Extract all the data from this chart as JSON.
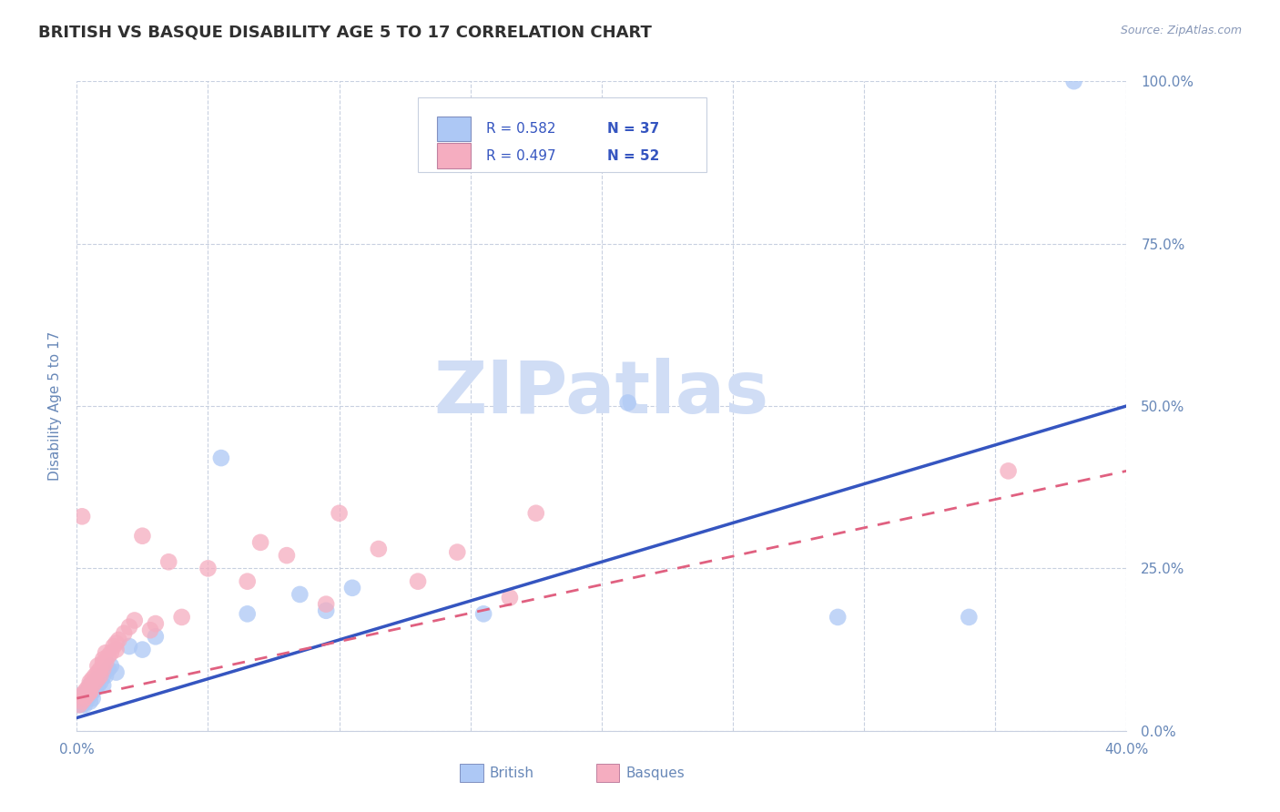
{
  "title": "BRITISH VS BASQUE DISABILITY AGE 5 TO 17 CORRELATION CHART",
  "source": "Source: ZipAtlas.com",
  "ylabel": "Disability Age 5 to 17",
  "xlim": [
    0.0,
    0.4
  ],
  "ylim": [
    0.0,
    1.0
  ],
  "xticks": [
    0.0,
    0.05,
    0.1,
    0.15,
    0.2,
    0.25,
    0.3,
    0.35,
    0.4
  ],
  "yticks": [
    0.0,
    0.25,
    0.5,
    0.75,
    1.0
  ],
  "ytick_labels": [
    "0.0%",
    "25.0%",
    "50.0%",
    "75.0%",
    "100.0%"
  ],
  "british_r": 0.582,
  "british_n": 37,
  "basque_r": 0.497,
  "basque_n": 52,
  "british_fill": "#adc8f5",
  "basque_fill": "#f5adc0",
  "british_line": "#3555c0",
  "basque_line": "#e06080",
  "grid_color": "#c8d0e0",
  "label_color": "#6888b8",
  "title_color": "#303030",
  "watermark_color": "#d0ddf5",
  "legend_edge": "#c8d0e0",
  "british_x": [
    0.001,
    0.002,
    0.002,
    0.003,
    0.003,
    0.004,
    0.004,
    0.005,
    0.005,
    0.005,
    0.006,
    0.006,
    0.006,
    0.007,
    0.007,
    0.008,
    0.008,
    0.009,
    0.01,
    0.01,
    0.011,
    0.012,
    0.013,
    0.015,
    0.02,
    0.025,
    0.03,
    0.055,
    0.065,
    0.085,
    0.095,
    0.105,
    0.155,
    0.21,
    0.29,
    0.34,
    0.38
  ],
  "british_y": [
    0.04,
    0.04,
    0.055,
    0.04,
    0.055,
    0.05,
    0.06,
    0.045,
    0.055,
    0.07,
    0.05,
    0.06,
    0.07,
    0.065,
    0.075,
    0.07,
    0.08,
    0.075,
    0.07,
    0.085,
    0.085,
    0.095,
    0.1,
    0.09,
    0.13,
    0.125,
    0.145,
    0.42,
    0.18,
    0.21,
    0.185,
    0.22,
    0.18,
    0.505,
    0.175,
    0.175,
    1.0
  ],
  "basque_x": [
    0.001,
    0.002,
    0.002,
    0.003,
    0.003,
    0.004,
    0.004,
    0.005,
    0.005,
    0.005,
    0.005,
    0.006,
    0.006,
    0.007,
    0.007,
    0.008,
    0.008,
    0.008,
    0.009,
    0.009,
    0.01,
    0.01,
    0.01,
    0.011,
    0.011,
    0.012,
    0.013,
    0.014,
    0.015,
    0.015,
    0.016,
    0.018,
    0.02,
    0.022,
    0.025,
    0.028,
    0.03,
    0.035,
    0.04,
    0.05,
    0.065,
    0.07,
    0.08,
    0.095,
    0.1,
    0.115,
    0.13,
    0.145,
    0.165,
    0.175,
    0.002,
    0.355
  ],
  "basque_y": [
    0.04,
    0.045,
    0.055,
    0.05,
    0.06,
    0.055,
    0.065,
    0.06,
    0.07,
    0.06,
    0.075,
    0.07,
    0.08,
    0.075,
    0.085,
    0.08,
    0.09,
    0.1,
    0.085,
    0.095,
    0.095,
    0.105,
    0.11,
    0.105,
    0.12,
    0.115,
    0.12,
    0.13,
    0.125,
    0.135,
    0.14,
    0.15,
    0.16,
    0.17,
    0.3,
    0.155,
    0.165,
    0.26,
    0.175,
    0.25,
    0.23,
    0.29,
    0.27,
    0.195,
    0.335,
    0.28,
    0.23,
    0.275,
    0.205,
    0.335,
    0.33,
    0.4
  ],
  "british_line_x0": 0.0,
  "british_line_y0": 0.02,
  "british_line_x1": 0.4,
  "british_line_y1": 0.5,
  "basque_line_x0": 0.0,
  "basque_line_y0": 0.05,
  "basque_line_x1": 0.4,
  "basque_line_y1": 0.4
}
